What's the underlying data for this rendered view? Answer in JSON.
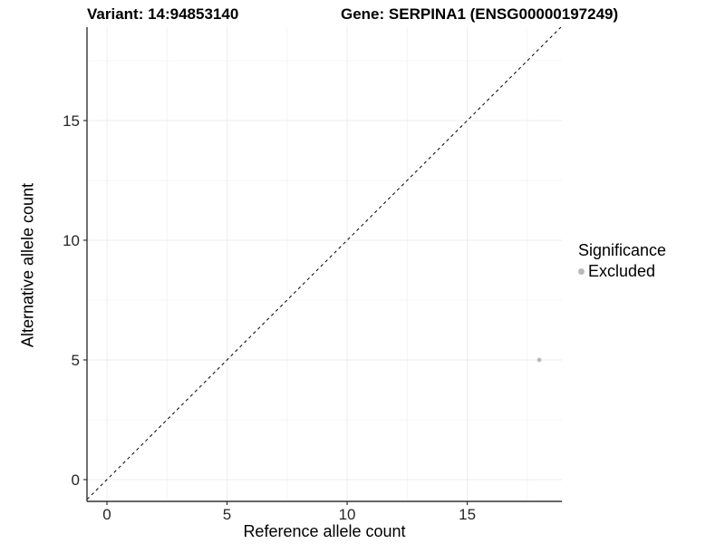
{
  "titles": {
    "variant": "Variant: 14:94853140",
    "gene": "Gene: SERPINA1 (ENSG00000197249)"
  },
  "legend": {
    "title": "Significance",
    "items": [
      {
        "label": "Excluded",
        "color": "#b9b9b9"
      }
    ]
  },
  "colors": {
    "axis_line": "#333333",
    "tick_label": "#262626",
    "grid_major": "#ececec",
    "grid_minor": "#f4f4f4",
    "reference_line": "#000000",
    "point": "#b9b9b9"
  },
  "chart_data": {
    "type": "scatter",
    "title": "Variant: 14:94853140   |   Gene: SERPINA1 (ENSG00000197249)",
    "xlabel": "Reference allele count",
    "ylabel": "Alternative allele count",
    "xlim": [
      -0.83,
      18.94
    ],
    "ylim": [
      -0.91,
      18.9
    ],
    "x_ticks": [
      0,
      5,
      10,
      15
    ],
    "y_ticks": [
      0,
      5,
      10,
      15
    ],
    "x_minor_ticks": [
      2.5,
      7.5,
      12.5,
      17.5
    ],
    "y_minor_ticks": [
      2.5,
      7.5,
      12.5,
      17.5
    ],
    "grid": true,
    "legend_position": "right",
    "series": [
      {
        "name": "Excluded",
        "color": "#b9b9b9",
        "points": [
          {
            "x": 18,
            "y": 5
          }
        ]
      }
    ],
    "reference_line": {
      "kind": "identity-diagonal",
      "style": "dashed",
      "color": "#000000"
    }
  }
}
